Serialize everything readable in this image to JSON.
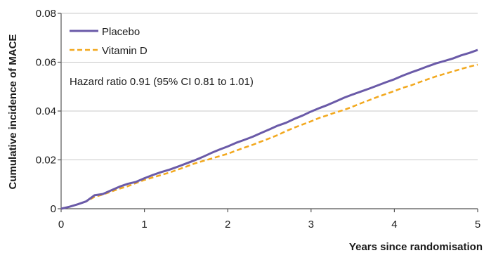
{
  "chart_data": {
    "type": "line",
    "xlabel": "Years since randomisation",
    "ylabel": "Cumulative incidence of MACE",
    "xlim": [
      0,
      5
    ],
    "ylim": [
      0,
      0.08
    ],
    "x_ticks": [
      0,
      1,
      2,
      3,
      4,
      5
    ],
    "x_tick_labels": [
      "0",
      "1",
      "2",
      "3",
      "4",
      "5"
    ],
    "y_ticks": [
      0,
      0.02,
      0.04,
      0.06,
      0.08
    ],
    "y_tick_labels": [
      "0",
      "0.02",
      "0.04",
      "0.06",
      "0.08"
    ],
    "grid": "horizontal",
    "legend_position": "top-left",
    "annotation": "Hazard ratio 0.91 (95% CI 0.81 to 1.01)",
    "series": [
      {
        "name": "Placebo",
        "style": "solid",
        "color": "#6a5aa8",
        "points": [
          [
            0,
            0
          ],
          [
            0.1,
            0.0008
          ],
          [
            0.2,
            0.0018
          ],
          [
            0.3,
            0.003
          ],
          [
            0.4,
            0.0055
          ],
          [
            0.5,
            0.006
          ],
          [
            0.6,
            0.0075
          ],
          [
            0.7,
            0.009
          ],
          [
            0.8,
            0.0102
          ],
          [
            0.9,
            0.011
          ],
          [
            1.0,
            0.0125
          ],
          [
            1.1,
            0.0138
          ],
          [
            1.2,
            0.015
          ],
          [
            1.3,
            0.016
          ],
          [
            1.4,
            0.0172
          ],
          [
            1.5,
            0.0185
          ],
          [
            1.6,
            0.0198
          ],
          [
            1.7,
            0.0212
          ],
          [
            1.8,
            0.0228
          ],
          [
            1.9,
            0.0242
          ],
          [
            2.0,
            0.0255
          ],
          [
            2.1,
            0.027
          ],
          [
            2.2,
            0.0282
          ],
          [
            2.3,
            0.0295
          ],
          [
            2.4,
            0.031
          ],
          [
            2.5,
            0.0325
          ],
          [
            2.6,
            0.034
          ],
          [
            2.7,
            0.0352
          ],
          [
            2.8,
            0.0368
          ],
          [
            2.9,
            0.0382
          ],
          [
            3.0,
            0.0398
          ],
          [
            3.1,
            0.0412
          ],
          [
            3.2,
            0.0425
          ],
          [
            3.3,
            0.044
          ],
          [
            3.4,
            0.0455
          ],
          [
            3.5,
            0.0468
          ],
          [
            3.6,
            0.048
          ],
          [
            3.7,
            0.0492
          ],
          [
            3.8,
            0.0505
          ],
          [
            3.9,
            0.0518
          ],
          [
            4.0,
            0.053
          ],
          [
            4.1,
            0.0545
          ],
          [
            4.2,
            0.0558
          ],
          [
            4.3,
            0.057
          ],
          [
            4.4,
            0.0583
          ],
          [
            4.5,
            0.0595
          ],
          [
            4.6,
            0.0605
          ],
          [
            4.7,
            0.0615
          ],
          [
            4.8,
            0.0628
          ],
          [
            4.9,
            0.0638
          ],
          [
            5.0,
            0.065
          ]
        ]
      },
      {
        "name": "Vitamin D",
        "style": "dashed",
        "color": "#f2a81d",
        "points": [
          [
            0,
            0
          ],
          [
            0.1,
            0.0008
          ],
          [
            0.2,
            0.0018
          ],
          [
            0.3,
            0.003
          ],
          [
            0.4,
            0.0048
          ],
          [
            0.5,
            0.0058
          ],
          [
            0.6,
            0.007
          ],
          [
            0.7,
            0.0082
          ],
          [
            0.8,
            0.0092
          ],
          [
            0.9,
            0.0105
          ],
          [
            1.0,
            0.0118
          ],
          [
            1.1,
            0.0128
          ],
          [
            1.2,
            0.0138
          ],
          [
            1.3,
            0.0148
          ],
          [
            1.4,
            0.016
          ],
          [
            1.5,
            0.0172
          ],
          [
            1.6,
            0.0185
          ],
          [
            1.7,
            0.0195
          ],
          [
            1.8,
            0.0205
          ],
          [
            1.9,
            0.0215
          ],
          [
            2.0,
            0.0225
          ],
          [
            2.1,
            0.0238
          ],
          [
            2.2,
            0.025
          ],
          [
            2.3,
            0.0262
          ],
          [
            2.4,
            0.0275
          ],
          [
            2.5,
            0.0288
          ],
          [
            2.6,
            0.0302
          ],
          [
            2.7,
            0.0318
          ],
          [
            2.8,
            0.0332
          ],
          [
            2.9,
            0.0345
          ],
          [
            3.0,
            0.0358
          ],
          [
            3.1,
            0.0372
          ],
          [
            3.2,
            0.0383
          ],
          [
            3.3,
            0.0395
          ],
          [
            3.4,
            0.0405
          ],
          [
            3.5,
            0.0418
          ],
          [
            3.6,
            0.0432
          ],
          [
            3.7,
            0.0445
          ],
          [
            3.8,
            0.0458
          ],
          [
            3.9,
            0.047
          ],
          [
            4.0,
            0.0482
          ],
          [
            4.1,
            0.0495
          ],
          [
            4.2,
            0.0505
          ],
          [
            4.3,
            0.0518
          ],
          [
            4.4,
            0.053
          ],
          [
            4.5,
            0.0542
          ],
          [
            4.6,
            0.0552
          ],
          [
            4.7,
            0.0562
          ],
          [
            4.8,
            0.0572
          ],
          [
            4.9,
            0.0582
          ],
          [
            5.0,
            0.059
          ]
        ]
      }
    ]
  }
}
